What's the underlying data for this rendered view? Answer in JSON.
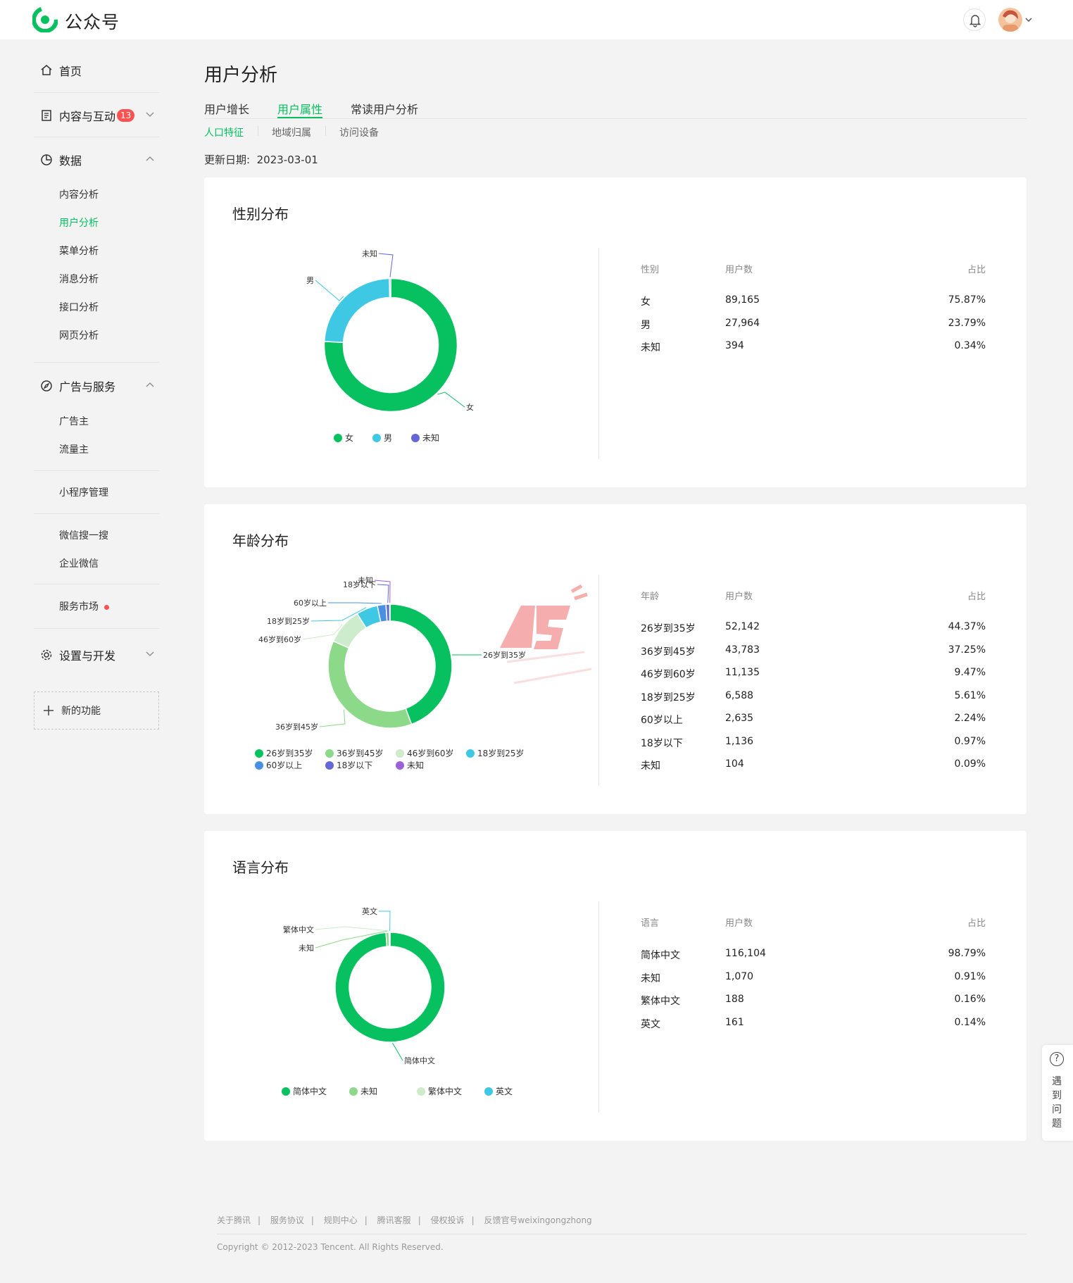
{
  "header": {
    "brand": "公众号"
  },
  "sidebar": {
    "home": "首页",
    "content": "内容与互动",
    "content_badge": "13",
    "data": "数据",
    "data_items": [
      "内容分析",
      "用户分析",
      "菜单分析",
      "消息分析",
      "接口分析",
      "网页分析"
    ],
    "ads": "广告与服务",
    "ads_items": [
      "广告主",
      "流量主"
    ],
    "miniprogram": "小程序管理",
    "wx_search": "微信搜一搜",
    "work_wechat": "企业微信",
    "service_market": "服务市场",
    "settings": "设置与开发",
    "new_feature": "新的功能"
  },
  "main": {
    "title": "用户分析",
    "tabs": [
      "用户增长",
      "用户属性",
      "常读用户分析"
    ],
    "subtabs": [
      "人口特征",
      "地域归属",
      "访问设备"
    ],
    "update_label": "更新日期:",
    "update_date": "2023-03-01"
  },
  "chart_data": [
    {
      "type": "pie",
      "title": "性别分布",
      "categories": [
        "女",
        "男",
        "未知"
      ],
      "values": [
        89165,
        27964,
        394
      ],
      "labels": [
        "89,165",
        "27,964",
        "394"
      ],
      "percents": [
        "75.87%",
        "23.79%",
        "0.34%"
      ],
      "colors": [
        "#07c160",
        "#3fc8e4",
        "#6467d6"
      ],
      "headers": [
        "性别",
        "用户数",
        "占比"
      ],
      "legend": "bottom"
    },
    {
      "type": "pie",
      "title": "年龄分布",
      "categories": [
        "26岁到35岁",
        "36岁到45岁",
        "46岁到60岁",
        "18岁到25岁",
        "60岁以上",
        "18岁以下",
        "未知"
      ],
      "values": [
        52142,
        43783,
        11135,
        6588,
        2635,
        1136,
        104
      ],
      "labels": [
        "52,142",
        "43,783",
        "11,135",
        "6,588",
        "2,635",
        "1,136",
        "104"
      ],
      "percents": [
        "44.37%",
        "37.25%",
        "9.47%",
        "5.61%",
        "2.24%",
        "0.97%",
        "0.09%"
      ],
      "colors": [
        "#07c160",
        "#8cd98a",
        "#cdeccb",
        "#3fc8e4",
        "#4a90e2",
        "#6467d6",
        "#9b62d8"
      ],
      "headers": [
        "年龄",
        "用户数",
        "占比"
      ],
      "legend": "bottom"
    },
    {
      "type": "pie",
      "title": "语言分布",
      "categories": [
        "简体中文",
        "未知",
        "繁体中文",
        "英文"
      ],
      "values": [
        116104,
        1070,
        188,
        161
      ],
      "labels": [
        "116,104",
        "1,070",
        "188",
        "161"
      ],
      "percents": [
        "98.79%",
        "0.91%",
        "0.16%",
        "0.14%"
      ],
      "colors": [
        "#07c160",
        "#8cd98a",
        "#cdeccb",
        "#3fc8e4"
      ],
      "headers": [
        "语言",
        "用户数",
        "占比"
      ],
      "legend": "bottom"
    }
  ],
  "help": {
    "icon": "?",
    "label": "遇到问题"
  },
  "footer": {
    "links": [
      "关于腾讯",
      "服务协议",
      "规则中心",
      "腾讯客服",
      "侵权投诉",
      "反馈官号weixingongzhong"
    ],
    "copyright": "Copyright © 2012-2023 Tencent. All Rights Reserved."
  }
}
